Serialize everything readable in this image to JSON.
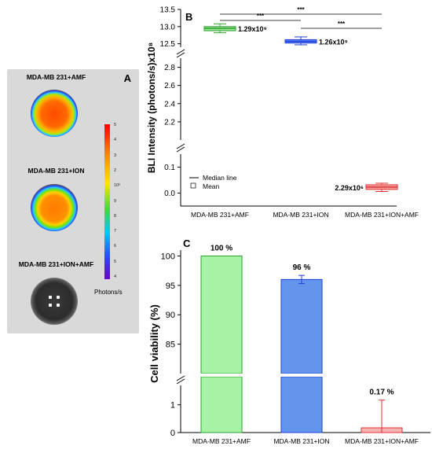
{
  "panel_a": {
    "letter": "A",
    "samples": [
      {
        "label": "MDA-MB 231+AMF"
      },
      {
        "label": "MDA-MB 231+ION"
      },
      {
        "label": "MDA-MB 231+ION+AMF"
      }
    ],
    "scale_ticks": [
      "5",
      "4",
      "3",
      "2",
      "10⁶",
      "9",
      "8",
      "7",
      "6",
      "5",
      "4"
    ],
    "scale_unit": "Photons/s",
    "colors": {
      "background": "#d9d9d9",
      "hot": "#ff5a00",
      "cool": "#2a4bff"
    }
  },
  "chart_data": [
    {
      "panel": "B",
      "type": "box",
      "ylabel": "BLI Intensity (photons/s)x10⁸",
      "categories": [
        "MDA-MB 231+AMF",
        "MDA-MB 231+ION",
        "MDA-MB 231+ION+AMF"
      ],
      "series": [
        {
          "color": "#2ca02c",
          "fill": "#9be89b",
          "median": 12.95,
          "q1": 12.88,
          "q3": 13.0,
          "whisker_low": 12.82,
          "whisker_high": 13.08,
          "annotation": "1.29x10⁹"
        },
        {
          "color": "#1f3fd6",
          "fill": "#5f86ff",
          "median": 12.57,
          "q1": 12.52,
          "q3": 12.62,
          "whisker_low": 12.47,
          "whisker_high": 12.7,
          "annotation": "1.26x10⁹"
        },
        {
          "color": "#e03030",
          "fill": "#f4a3a3",
          "median": 0.023,
          "q1": 0.014,
          "q3": 0.032,
          "whisker_low": 0.006,
          "whisker_high": 0.038,
          "annotation": "2.29x10⁶"
        }
      ],
      "broken_axis": [
        {
          "ylim": [
            12.4,
            13.5
          ],
          "ticks": [
            "12.5",
            "13.0",
            "13.5"
          ]
        },
        {
          "ylim": [
            2.0,
            2.9
          ],
          "ticks": [
            "2.2",
            "2.4",
            "2.6",
            "2.8"
          ]
        },
        {
          "ylim": [
            -0.05,
            0.15
          ],
          "ticks": [
            "0.0",
            "0.1"
          ]
        }
      ],
      "significance": [
        "***",
        "***",
        "***"
      ],
      "legend": [
        "Median line",
        "Mean"
      ],
      "legend_position": "bottom-left"
    },
    {
      "panel": "C",
      "type": "bar",
      "ylabel": "Cell viability (%)",
      "categories": [
        "MDA-MB 231+AMF",
        "MDA-MB 231+ION",
        "MDA-MB 231+ION+AMF"
      ],
      "values": [
        100,
        96,
        0.17
      ],
      "errors": [
        0,
        0.7,
        1.0
      ],
      "labels": [
        "100 %",
        "96 %",
        "0.17 %"
      ],
      "colors": [
        {
          "fill": "#a6f3a6",
          "stroke": "#2ca02c"
        },
        {
          "fill": "#6495ed",
          "stroke": "#1f3fd6"
        },
        {
          "fill": "#f6b3b3",
          "stroke": "#e03030"
        }
      ],
      "broken_axis": [
        {
          "ylim": [
            80,
            101
          ],
          "ticks": [
            "85",
            "90",
            "95",
            "100"
          ]
        },
        {
          "ylim": [
            0,
            1.7
          ],
          "ticks": [
            "0",
            "1"
          ]
        }
      ]
    }
  ]
}
